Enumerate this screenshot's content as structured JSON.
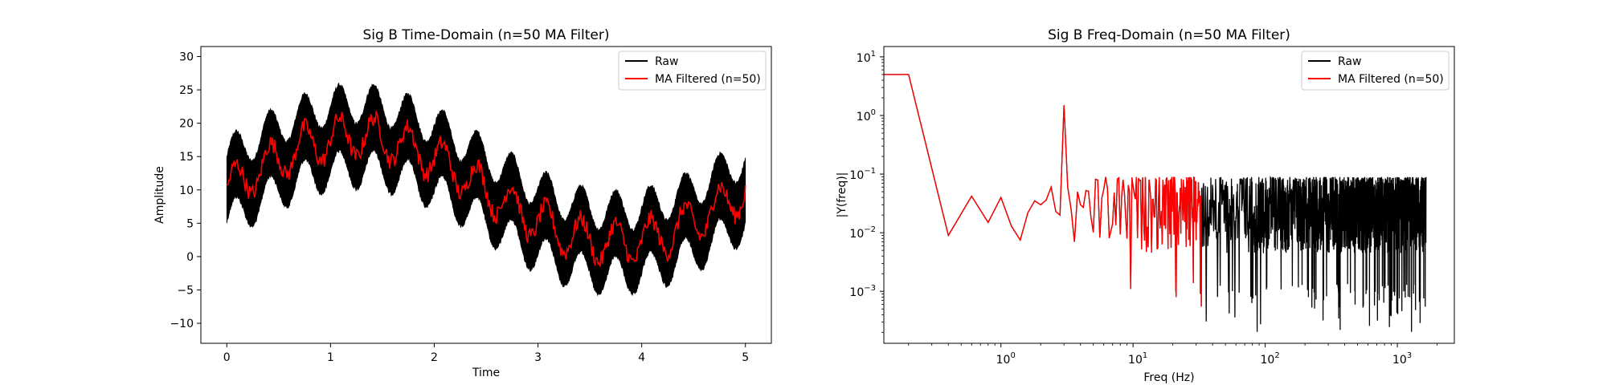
{
  "chart_data": [
    {
      "type": "line",
      "title": "Sig B Time-Domain (n=50 MA Filter)",
      "xlabel": "Time",
      "ylabel": "Amplitude",
      "xlim": [
        -0.25,
        5.25
      ],
      "ylim": [
        -13,
        31.5
      ],
      "xticks": [
        0,
        1,
        2,
        3,
        4,
        5
      ],
      "yticks": [
        -10,
        -5,
        0,
        5,
        10,
        15,
        20,
        25,
        30
      ],
      "legend_position": "upper right",
      "series": [
        {
          "name": "Raw",
          "color": "#000000"
        },
        {
          "name": "MA Filtered (n=50)",
          "color": "#ff0000"
        }
      ],
      "signal_components": {
        "offset": 10,
        "slow_sine": {
          "amplitude": 8,
          "frequency_hz": 0.2
        },
        "ripple_sine": {
          "amplitude": 3,
          "frequency_hz": 3
        },
        "noise_band_halfwidth": 5,
        "sample_rate_hz_approx": 3300
      }
    },
    {
      "type": "line",
      "title": "Sig B Freq-Domain (n=50 MA Filter)",
      "xlabel": "Freq (Hz)",
      "ylabel": "|Y(freq)|",
      "xscale": "log",
      "yscale": "log",
      "xlim": [
        0.13,
        2700
      ],
      "ylim": [
        0.00013,
        15
      ],
      "xticks": [
        "10^0",
        "10^1",
        "10^2",
        "10^3"
      ],
      "yticks": [
        "10^-3",
        "10^-2",
        "10^-1",
        "10^0",
        "10^1"
      ],
      "legend_position": "upper right",
      "series": [
        {
          "name": "Raw",
          "color": "#000000",
          "x_range": [
            0.2,
            1650
          ],
          "noise_floor_range": [
            0.0002,
            0.1
          ]
        },
        {
          "name": "MA Filtered (n=50)",
          "color": "#ff0000",
          "x_range": [
            0.2,
            33
          ]
        }
      ],
      "key_points": [
        {
          "x": 0.13,
          "y": 5.0
        },
        {
          "x": 0.2,
          "y": 5.0
        },
        {
          "x": 0.4,
          "y": 0.009
        },
        {
          "x": 0.6,
          "y": 0.042
        },
        {
          "x": 0.8,
          "y": 0.015
        },
        {
          "x": 1.0,
          "y": 0.04
        },
        {
          "x": 1.2,
          "y": 0.013
        },
        {
          "x": 1.4,
          "y": 0.0075
        },
        {
          "x": 1.6,
          "y": 0.022
        },
        {
          "x": 1.8,
          "y": 0.035
        },
        {
          "x": 2.0,
          "y": 0.03
        },
        {
          "x": 2.2,
          "y": 0.036
        },
        {
          "x": 2.4,
          "y": 0.06
        },
        {
          "x": 2.6,
          "y": 0.023
        },
        {
          "x": 2.8,
          "y": 0.02
        },
        {
          "x": 3.0,
          "y": 1.5
        },
        {
          "x": 3.2,
          "y": 0.06
        },
        {
          "x": 3.4,
          "y": 0.025
        },
        {
          "x": 3.6,
          "y": 0.007
        },
        {
          "x": 3.8,
          "y": 0.05
        },
        {
          "x": 4.0,
          "y": 0.03
        }
      ]
    }
  ]
}
